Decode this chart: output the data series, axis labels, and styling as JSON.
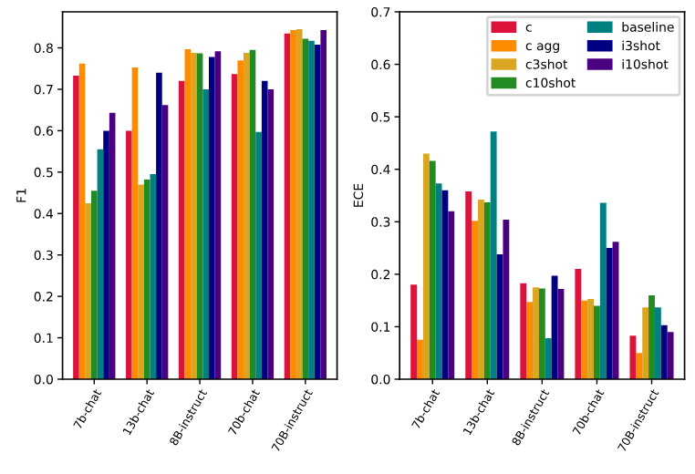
{
  "chart_data": [
    {
      "type": "bar",
      "ylabel": "F1",
      "categories": [
        "7b-chat",
        "13b-chat",
        "8B-instruct",
        "70b-chat",
        "70B-instruct"
      ],
      "ylim": [
        0,
        0.887
      ],
      "yticks": [
        {
          "value": 0,
          "label": "0.0"
        },
        0.1,
        0.2,
        0.3,
        0.4,
        0.5,
        0.6,
        0.7,
        0.8
      ],
      "grid": false,
      "legend": false,
      "series": [
        {
          "color": "#dc143c",
          "values": [
            0.733,
            0.6,
            0.72,
            0.737,
            0.835
          ]
        },
        {
          "color": "#ff8c00",
          "values": [
            0.762,
            0.753,
            0.797,
            0.77,
            0.843
          ]
        },
        {
          "color": "#daa520",
          "values": [
            0.425,
            0.47,
            0.788,
            0.788,
            0.845
          ]
        },
        {
          "color": "#228b22",
          "values": [
            0.455,
            0.482,
            0.787,
            0.795,
            0.822
          ]
        },
        {
          "color": "#008080",
          "values": [
            0.555,
            0.495,
            0.7,
            0.597,
            0.817
          ]
        },
        {
          "color": "#000080",
          "values": [
            0.6,
            0.74,
            0.778,
            0.72,
            0.808
          ]
        },
        {
          "color": "#4b0082",
          "values": [
            0.643,
            0.662,
            0.792,
            0.7,
            0.843
          ]
        }
      ]
    },
    {
      "type": "bar",
      "ylabel": "ECE",
      "categories": [
        "7b-chat",
        "13b-chat",
        "8B-instruct",
        "70b-chat",
        "70B-instruct"
      ],
      "ylim": [
        0,
        0.7
      ],
      "yticks": [
        {
          "value": 0,
          "label": "0.0"
        },
        0.1,
        0.2,
        0.3,
        0.4,
        0.5,
        0.6,
        0.7
      ],
      "grid": false,
      "legend": "top right",
      "series": [
        {
          "name": "c",
          "color": "#dc143c",
          "values": [
            0.18,
            0.358,
            0.183,
            0.21,
            0.083
          ]
        },
        {
          "name": "c agg",
          "color": "#ff8c00",
          "values": [
            0.075,
            0.302,
            0.147,
            0.15,
            0.05
          ]
        },
        {
          "name": "c3shot",
          "color": "#daa520",
          "values": [
            0.43,
            0.342,
            0.175,
            0.153,
            0.137
          ]
        },
        {
          "name": "c10shot",
          "color": "#228b22",
          "values": [
            0.416,
            0.337,
            0.173,
            0.14,
            0.16
          ]
        },
        {
          "name": "baseline",
          "color": "#008080",
          "values": [
            0.373,
            0.472,
            0.078,
            0.336,
            0.137
          ]
        },
        {
          "name": "i3shot",
          "color": "#000080",
          "values": [
            0.36,
            0.238,
            0.197,
            0.25,
            0.103
          ]
        },
        {
          "name": "i10shot",
          "color": "#4b0082",
          "values": [
            0.32,
            0.304,
            0.172,
            0.262,
            0.09
          ]
        }
      ]
    }
  ]
}
